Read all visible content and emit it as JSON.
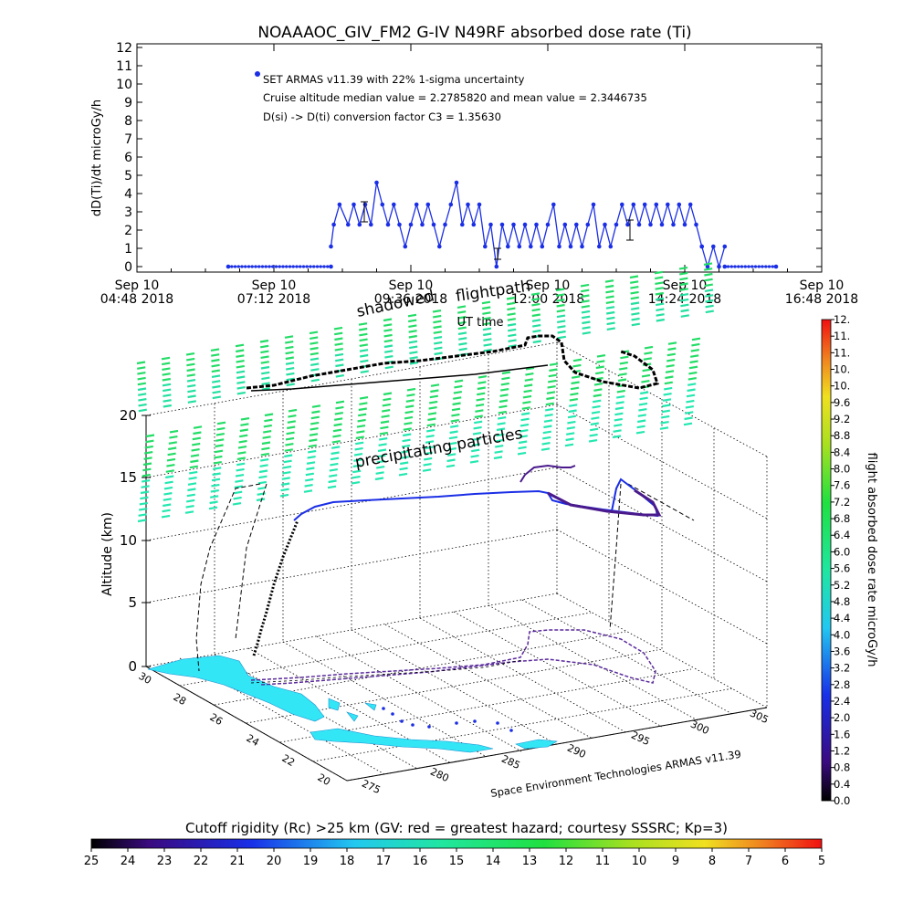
{
  "title": "NOAAAOC_GIV_FM2 G-IV    N49RF   absorbed dose rate (Ti)",
  "chart_data": [
    {
      "type": "line",
      "title": "NOAAAOC_GIV_FM2 G-IV    N49RF   absorbed dose rate (Ti)",
      "ylabel": "dD(Ti)/dt microGy/h",
      "xlabel": "UT time",
      "ylim": [
        0,
        12
      ],
      "y_ticks": [
        "0",
        "1",
        "2",
        "3",
        "4",
        "5",
        "6",
        "7",
        "8",
        "9",
        "10",
        "11",
        "12"
      ],
      "x_tick_labels": [
        {
          "top": "Sep 10",
          "bottom": "04:48 2018"
        },
        {
          "top": "Sep 10",
          "bottom": "07:12 2018"
        },
        {
          "top": "Sep 10",
          "bottom": "09:36 2018"
        },
        {
          "top": "Sep 10",
          "bottom": "12:00 2018"
        },
        {
          "top": "Sep 10",
          "bottom": "14:24 2018"
        },
        {
          "top": "Sep 10",
          "bottom": "16:48 2018"
        }
      ],
      "x_range_hours": [
        4.8,
        16.8
      ],
      "legend": [
        "SET ARMAS v11.39 with 22% 1-sigma uncertainty",
        "Cruise altitude median value = 2.2785820 and mean value = 2.3446735",
        "D(si) -> D(ti) conversion factor C3 = 1.35630"
      ],
      "series": [
        {
          "color": "#1a2ee6",
          "segments": [
            {
              "x": [
                6.4,
                8.2
              ],
              "y": [
                0,
                0
              ]
            },
            {
              "x": [
                8.2,
                8.25,
                8.35,
                8.5,
                8.6,
                8.7,
                8.8,
                8.9,
                9.0,
                9.1,
                9.2,
                9.3,
                9.4,
                9.5,
                9.6,
                9.7,
                9.8,
                9.9,
                10.0,
                10.1,
                10.2,
                10.3,
                10.4,
                10.5,
                10.6,
                10.7,
                10.8,
                10.9,
                11.0,
                11.1,
                11.2,
                11.3,
                11.4,
                11.5,
                11.6,
                11.7,
                11.8,
                11.9,
                12.0,
                12.1,
                12.2,
                12.3,
                12.4,
                12.5,
                12.6,
                12.7,
                12.8,
                12.9,
                13.0,
                13.1,
                13.2,
                13.3,
                13.4,
                13.5,
                13.6,
                13.7,
                13.8,
                13.9,
                14.0,
                14.1,
                14.2,
                14.3,
                14.4,
                14.5,
                14.6,
                14.7
              ],
              "y": [
                1.1,
                2.3,
                3.4,
                2.3,
                3.4,
                2.3,
                3.4,
                2.3,
                4.6,
                3.4,
                2.3,
                3.4,
                2.3,
                1.1,
                2.3,
                3.4,
                2.3,
                3.4,
                2.3,
                1.1,
                2.3,
                3.4,
                4.6,
                2.3,
                3.4,
                2.3,
                3.4,
                1.1,
                2.3,
                0,
                2.3,
                1.1,
                2.3,
                1.1,
                2.3,
                1.1,
                2.3,
                1.1,
                2.3,
                3.4,
                1.1,
                2.3,
                1.1,
                2.3,
                1.1,
                2.3,
                3.4,
                1.1,
                2.3,
                1.1,
                2.3,
                3.4,
                2.3,
                3.4,
                2.3,
                3.4,
                2.3,
                3.4,
                2.3,
                3.4,
                2.3,
                3.4,
                2.3,
                3.4,
                2.3,
                1.1
              ]
            },
            {
              "x": [
                14.7,
                14.8,
                14.9,
                15.0,
                15.1
              ],
              "y": [
                1.1,
                0,
                1.1,
                0,
                1.1
              ]
            },
            {
              "x": [
                15.1,
                16.0
              ],
              "y": [
                0,
                0
              ]
            }
          ]
        }
      ]
    },
    {
      "type": "scatter",
      "xlabel": "",
      "ylabel": "Altitude (km)",
      "zlim": [
        0,
        20
      ],
      "z_ticks": [
        "0",
        "5",
        "10",
        "15",
        "20"
      ],
      "lat_ticks": [
        "30",
        "28",
        "26",
        "24",
        "22",
        "20"
      ],
      "lon_ticks": [
        "275",
        "280",
        "285",
        "290",
        "295",
        "300",
        "305"
      ],
      "annotations": [
        "shadowed",
        "flightpath",
        "precipitating particles",
        "UT time"
      ],
      "credit": "Space Environment Technologies ARMAS v11.39",
      "flight_track": {
        "lat": [
          25.8,
          25.5,
          25.2,
          25.0,
          24.8,
          24.8,
          25.0,
          25.2,
          24.9,
          24.6,
          24.8,
          25.2,
          25.6,
          26.0,
          26.5,
          27.0,
          27.2,
          26.8,
          26.2,
          25.7,
          25.8
        ],
        "lon": [
          279.7,
          282.0,
          284.0,
          286.0,
          288.0,
          290.0,
          291.5,
          293.0,
          293.5,
          294.0,
          296.0,
          298.0,
          299.5,
          300.5,
          301.0,
          300.5,
          299.5,
          298.5,
          296.0,
          290.0,
          279.7
        ],
        "altitude_km": [
          0.2,
          4,
          8,
          12.5,
          12.8,
          13.0,
          13.0,
          13.0,
          13.2,
          13.5,
          13.4,
          13.2,
          13.0,
          12.8,
          12.5,
          12.5,
          12.8,
          13.0,
          13.0,
          12.5,
          0.2
        ]
      }
    }
  ],
  "colorbar_right": {
    "label": "flight absorbed dose rate microGy/h",
    "ticks": [
      "0.0",
      "0.4",
      "0.8",
      "1.2",
      "1.6",
      "2.0",
      "2.4",
      "2.8",
      "3.2",
      "3.6",
      "4.0",
      "4.4",
      "4.8",
      "5.2",
      "5.6",
      "6.0",
      "6.4",
      "6.8",
      "7.2",
      "7.6",
      "8.0",
      "8.4",
      "8.8",
      "9.2",
      "9.6",
      "10.",
      "10.",
      "11.",
      "11.",
      "12."
    ]
  },
  "colorbar_bottom": {
    "label": "Cutoff rigidity (Rc) >25 km (GV: red = greatest hazard; courtesy SSSRC; Kp=3)",
    "ticks": [
      "25",
      "24",
      "23",
      "22",
      "21",
      "20",
      "19",
      "18",
      "17",
      "16",
      "15",
      "14",
      "13",
      "12",
      "11",
      "10",
      "9",
      "8",
      "7",
      "6",
      "5"
    ]
  },
  "colors": {
    "series": "#1a2ee6",
    "flight_black": "#000000",
    "flight_purple": "#4a1a8c",
    "precip_green": "#22dd66",
    "precip_teal": "#22e8b0",
    "land_cyan": "#33e6f5"
  }
}
